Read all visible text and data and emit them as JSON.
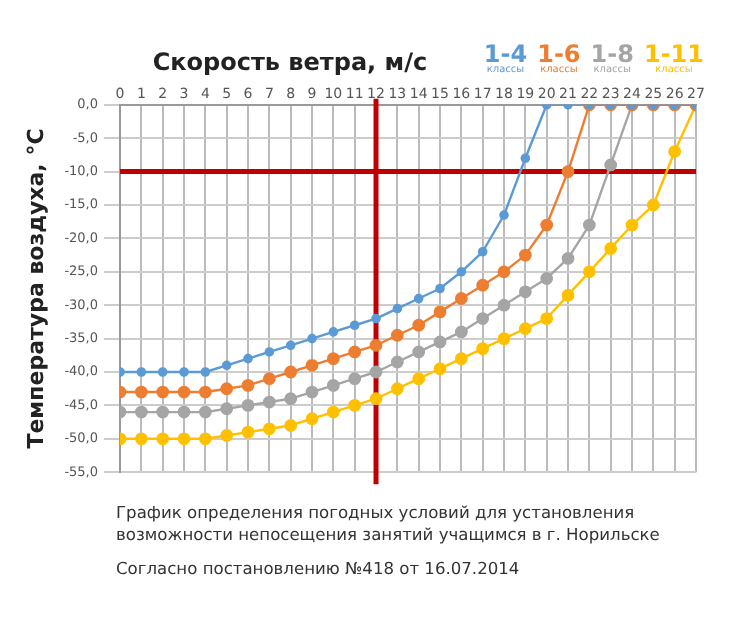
{
  "chart_data": {
    "type": "line",
    "xlabel": "Скорость ветра, м/с",
    "ylabel": "Температура воздуха, °С",
    "x": [
      0,
      1,
      2,
      3,
      4,
      5,
      6,
      7,
      8,
      9,
      10,
      11,
      12,
      13,
      14,
      15,
      16,
      17,
      18,
      19,
      20,
      21,
      22,
      23,
      24,
      25,
      26,
      27
    ],
    "series": [
      {
        "name": "1-4 классы",
        "color": "#5b9bd5",
        "values": [
          -40,
          -40,
          -40,
          -40,
          -40,
          -39,
          -38,
          -37,
          -36,
          -35,
          -34,
          -33,
          -32,
          -30.5,
          -29,
          -27.5,
          -25,
          -22,
          -16.5,
          -8,
          0,
          0,
          0,
          0,
          0,
          0,
          0,
          0
        ]
      },
      {
        "name": "1-6 классы",
        "color": "#ed7d31",
        "values": [
          -43,
          -43,
          -43,
          -43,
          -43,
          -42.5,
          -42,
          -41,
          -40,
          -39,
          -38,
          -37,
          -36,
          -34.5,
          -33,
          -31,
          -29,
          -27,
          -25,
          -22.5,
          -18,
          -10,
          0,
          0,
          0,
          0,
          0,
          0
        ]
      },
      {
        "name": "1-8 классы",
        "color": "#a5a5a5",
        "values": [
          -46,
          -46,
          -46,
          -46,
          -46,
          -45.5,
          -45,
          -44.5,
          -44,
          -43,
          -42,
          -41,
          -40,
          -38.5,
          -37,
          -35.5,
          -34,
          -32,
          -30,
          -28,
          -26,
          -23,
          -18,
          -9,
          0,
          0,
          0,
          0
        ]
      },
      {
        "name": "1-11 классы",
        "color": "#ffc000",
        "values": [
          -50,
          -50,
          -50,
          -50,
          -50,
          -49.5,
          -49,
          -48.5,
          -48,
          -47,
          -46,
          -45,
          -44,
          -42.5,
          -41,
          -39.5,
          -38,
          -36.5,
          -35,
          -33.5,
          -32,
          -28.5,
          -25,
          -21.5,
          -18,
          -15,
          -7,
          0
        ]
      }
    ],
    "xlim": [
      0,
      27
    ],
    "xticks": [
      0,
      1,
      2,
      3,
      4,
      5,
      6,
      7,
      8,
      9,
      10,
      11,
      12,
      13,
      14,
      15,
      16,
      17,
      18,
      19,
      20,
      21,
      22,
      23,
      24,
      25,
      26,
      27
    ],
    "ylim": [
      -55,
      0
    ],
    "yticks": [
      {
        "value": 0,
        "label": "0,0"
      },
      {
        "value": -5,
        "label": "-5,0"
      },
      {
        "value": -10,
        "label": "-10,0"
      },
      {
        "value": -15,
        "label": "-15,0"
      },
      {
        "value": -20,
        "label": "-20,0"
      },
      {
        "value": -25,
        "label": "-25,0"
      },
      {
        "value": -30,
        "label": "-30,0"
      },
      {
        "value": -35,
        "label": "-35,0"
      },
      {
        "value": -40,
        "label": "-40,0"
      },
      {
        "value": -45,
        "label": "-45,0"
      },
      {
        "value": -50,
        "label": "-50,0"
      },
      {
        "value": -55,
        "label": "-55,0"
      }
    ],
    "ref_lines": [
      {
        "axis": "x",
        "value": 12,
        "color": "#c00000"
      },
      {
        "axis": "y",
        "value": -10,
        "color": "#c00000"
      }
    ],
    "grid": true,
    "legend": "top right",
    "marker": "circle",
    "line_style": "solid",
    "annotations": [
      "График определения погодных условий для установления возможности непосещения занятий учащимся в г. Норильске",
      "Согласно постановлению №418 от 16.07.2014"
    ]
  }
}
